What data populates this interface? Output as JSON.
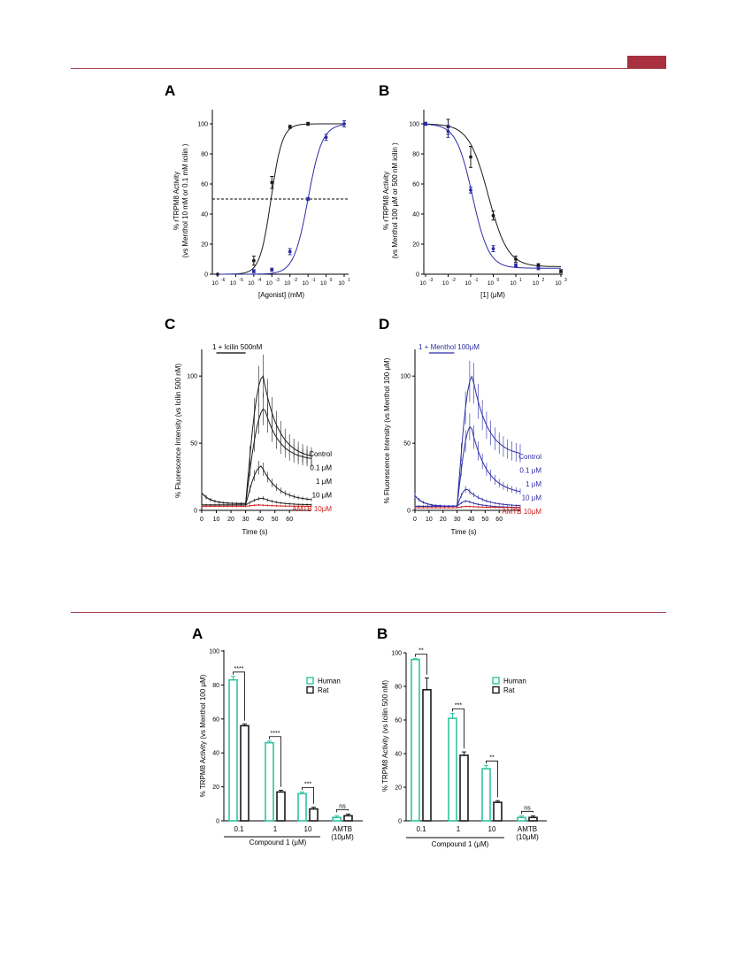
{
  "colors": {
    "black": "#1a1a1a",
    "blue": "#2c2ca6",
    "red": "#d01c1c",
    "teal": "#2ec4a0",
    "rule": "#a94654",
    "tab": "#a8303f"
  },
  "figure1": {
    "panels": {
      "A": {
        "letter": "A",
        "ylabel_line1": "% rTRPM8 Activity",
        "ylabel_line2": "(vs Menthol 10 mM or 0.1 mM icilin )",
        "xlabel": "[Agonist] (mM)",
        "xticks": [
          "10",
          "10",
          "10",
          "10",
          "10",
          "10",
          "10",
          "10"
        ],
        "xtick_exp": [
          "-6",
          "-5",
          "-4",
          "-3",
          "-2",
          "-1",
          "0",
          "1"
        ],
        "yticks": [
          "0",
          "20",
          "40",
          "60",
          "80",
          "100"
        ],
        "chart_data": {
          "type": "scatter",
          "xscale": "log",
          "xlim": [
            1e-06,
            10
          ],
          "ylim": [
            0,
            100
          ],
          "reference_line_y": 50,
          "series": [
            {
              "color": "black",
              "x": [
                1e-06,
                0.0001,
                0.001,
                0.01,
                0.1
              ],
              "y": [
                0,
                9,
                61,
                98,
                100
              ],
              "err": [
                0,
                3,
                4,
                1,
                1
              ],
              "ec50": 0.0009,
              "hill": 1.4
            },
            {
              "color": "blue",
              "x": [
                0.0001,
                0.001,
                0.01,
                0.1,
                1,
                10
              ],
              "y": [
                2,
                3,
                15,
                50,
                91,
                100
              ],
              "err": [
                1,
                1,
                2,
                1,
                2,
                2
              ],
              "ec50": 0.1,
              "hill": 1.1
            }
          ]
        }
      },
      "B": {
        "letter": "B",
        "ylabel_line1": "% rTRPM8 Activity",
        "ylabel_line2": "(vs Menthol 100 μM or 500 nM icilin )",
        "xlabel": "[1] (μM)",
        "xticks": [
          "10",
          "10",
          "10",
          "10",
          "10",
          "10",
          "10"
        ],
        "xtick_exp": [
          "-3",
          "-2",
          "-1",
          "0",
          "1",
          "2",
          "3"
        ],
        "yticks": [
          "0",
          "20",
          "40",
          "60",
          "80",
          "100"
        ],
        "chart_data": {
          "type": "scatter",
          "xscale": "log",
          "xlim": [
            0.001,
            1000
          ],
          "ylim": [
            0,
            100
          ],
          "series": [
            {
              "color": "black",
              "x": [
                0.001,
                0.01,
                0.1,
                1,
                10,
                100,
                1000
              ],
              "y": [
                100,
                98,
                78,
                39,
                10,
                6,
                2
              ],
              "err": [
                1,
                5,
                7,
                3,
                2,
                1,
                1
              ],
              "ic50": 0.6,
              "hill": 1.0,
              "bottom": 5
            },
            {
              "color": "blue",
              "x": [
                0.001,
                0.01,
                0.1,
                1,
                10,
                100
              ],
              "y": [
                100,
                95,
                56,
                17,
                6,
                4
              ],
              "err": [
                1,
                4,
                2,
                2,
                1,
                1
              ],
              "ic50": 0.12,
              "hill": 1.2,
              "bottom": 4
            }
          ]
        }
      },
      "C": {
        "letter": "C",
        "ylabel": "% Fluorescence Intensity  (vs Icilin 500 nM)",
        "xlabel": "Time (s)",
        "bar_label": "1 + Icilin 500nM",
        "xticks": [
          "0",
          "10",
          "20",
          "30",
          "40",
          "50",
          "60"
        ],
        "yticks": [
          "0",
          "50",
          "100"
        ],
        "legend": [
          "Control",
          "0.1 μM",
          "1 μM",
          "10 μM",
          "AMTB 10μM"
        ],
        "chart_data": {
          "type": "line",
          "xlim": [
            0,
            75
          ],
          "ylim": [
            0,
            110
          ],
          "application_bar": [
            10,
            30
          ],
          "series": [
            {
              "name": "Control",
              "color": "black",
              "baseline": 5,
              "peak": 100,
              "t_peak": 42,
              "final": 38
            },
            {
              "name": "0.1 μM",
              "color": "black",
              "baseline": 5,
              "peak": 76,
              "t_peak": 43,
              "final": 37
            },
            {
              "name": "1 μM",
              "color": "black",
              "baseline": 4,
              "peak": 33,
              "t_peak": 41,
              "final": 7
            },
            {
              "name": "10 μM",
              "color": "black",
              "baseline": 4,
              "peak": 9,
              "t_peak": 42,
              "final": 4
            },
            {
              "name": "AMTB 10μM",
              "color": "red",
              "baseline": 3,
              "peak": 4,
              "t_peak": 40,
              "final": 3
            }
          ]
        }
      },
      "D": {
        "letter": "D",
        "ylabel": "% Fluorescence Intensity  (vs Menthol 100 μM)",
        "xlabel": "Time (s)",
        "bar_label": "1 + Menthol 100μM",
        "xticks": [
          "0",
          "10",
          "20",
          "30",
          "40",
          "50",
          "60"
        ],
        "yticks": [
          "0",
          "50",
          "100"
        ],
        "legend": [
          "Control",
          "0.1 μM",
          "1 μM",
          "10 μM",
          "AMTB 10μM"
        ],
        "chart_data": {
          "type": "line",
          "xlim": [
            0,
            75
          ],
          "ylim": [
            0,
            110
          ],
          "application_bar": [
            10,
            28
          ],
          "series": [
            {
              "name": "Control",
              "color": "blue",
              "baseline": 3,
              "peak": 100,
              "t_peak": 41,
              "final": 40
            },
            {
              "name": "0.1 μM",
              "color": "blue",
              "baseline": 3,
              "peak": 63,
              "t_peak": 40,
              "final": 12
            },
            {
              "name": "1 μM",
              "color": "blue",
              "baseline": 3,
              "peak": 16,
              "t_peak": 37,
              "final": 3
            },
            {
              "name": "10 μM",
              "color": "blue",
              "baseline": 3,
              "peak": 7,
              "t_peak": 37,
              "final": 2
            },
            {
              "name": "AMTB 10μM",
              "color": "red",
              "baseline": 2,
              "peak": 3,
              "t_peak": 38,
              "final": 2
            }
          ]
        }
      }
    }
  },
  "figure2": {
    "panels": {
      "A": {
        "letter": "A",
        "ylabel": "% TRPM8 Activity (vs Menthol 100 μM)",
        "compound_label": "Compound 1 (μM)",
        "yticks": [
          "0",
          "20",
          "40",
          "60",
          "80",
          "100"
        ],
        "legend": [
          "Human",
          "Rat"
        ],
        "chart_data": {
          "type": "bar",
          "categories": [
            "0.1",
            "1",
            "10",
            "AMTB"
          ],
          "category_sublabels": [
            "",
            "",
            "",
            "(10μM)"
          ],
          "ylim": [
            0,
            100
          ],
          "series": [
            {
              "name": "Human",
              "values": [
                83,
                46,
                16,
                2
              ],
              "errors": [
                2,
                1,
                1,
                1
              ]
            },
            {
              "name": "Rat",
              "values": [
                56,
                17,
                7,
                3
              ],
              "errors": [
                1,
                1,
                1,
                1
              ]
            }
          ],
          "significance": [
            "****",
            "****",
            "***",
            "ns"
          ]
        }
      },
      "B": {
        "letter": "B",
        "ylabel": "% TRPM8 Activity (vs Icilin 500 nM)",
        "compound_label": "Compound 1 (μM)",
        "yticks": [
          "0",
          "20",
          "40",
          "60",
          "80",
          "100"
        ],
        "legend": [
          "Human",
          "Rat"
        ],
        "chart_data": {
          "type": "bar",
          "categories": [
            "0.1",
            "1",
            "10",
            "AMTB"
          ],
          "category_sublabels": [
            "",
            "",
            "",
            "(10μM)"
          ],
          "ylim": [
            0,
            100
          ],
          "series": [
            {
              "name": "Human",
              "values": [
                96,
                61,
                31,
                2
              ],
              "errors": [
                0.5,
                3,
                2,
                1
              ]
            },
            {
              "name": "Rat",
              "values": [
                78,
                39,
                11,
                2
              ],
              "errors": [
                7,
                2,
                1,
                1
              ]
            }
          ],
          "significance": [
            "**",
            "***",
            "**",
            "ns"
          ]
        }
      }
    }
  }
}
